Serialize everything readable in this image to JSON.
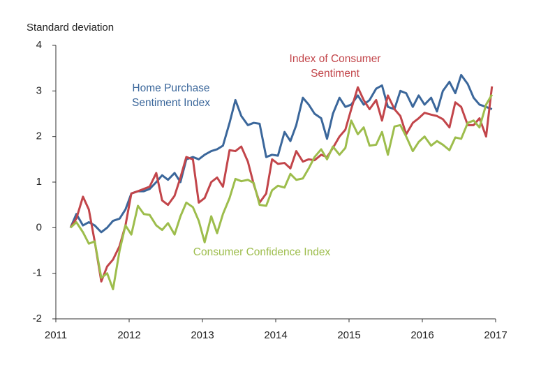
{
  "chart_data": {
    "type": "line",
    "y_axis_label": "Standard deviation",
    "x": [
      2011.2,
      2011.28,
      2011.37,
      2011.45,
      2011.53,
      2011.62,
      2011.7,
      2011.78,
      2011.87,
      2011.95,
      2012.03,
      2012.12,
      2012.2,
      2012.28,
      2012.37,
      2012.45,
      2012.53,
      2012.62,
      2012.7,
      2012.78,
      2012.87,
      2012.95,
      2013.03,
      2013.12,
      2013.2,
      2013.28,
      2013.37,
      2013.45,
      2013.53,
      2013.62,
      2013.7,
      2013.78,
      2013.87,
      2013.95,
      2014.03,
      2014.12,
      2014.2,
      2014.28,
      2014.37,
      2014.45,
      2014.53,
      2014.62,
      2014.7,
      2014.78,
      2014.87,
      2014.95,
      2015.03,
      2015.12,
      2015.2,
      2015.28,
      2015.37,
      2015.45,
      2015.53,
      2015.62,
      2015.7,
      2015.78,
      2015.87,
      2015.95,
      2016.03,
      2016.12,
      2016.2,
      2016.28,
      2016.37,
      2016.45,
      2016.53,
      2016.62,
      2016.7,
      2016.78,
      2016.87,
      2016.95
    ],
    "series": [
      {
        "name": "Home Purchase Sentiment Index",
        "color": "#3b679b",
        "values": [
          0,
          0.3,
          0.05,
          0.12,
          0.05,
          -0.1,
          0,
          0.15,
          0.2,
          0.4,
          0.75,
          0.8,
          0.8,
          0.85,
          1.0,
          1.15,
          1.05,
          1.2,
          1.0,
          1.5,
          1.55,
          1.5,
          1.6,
          1.68,
          1.72,
          1.8,
          2.3,
          2.8,
          2.45,
          2.25,
          2.3,
          2.28,
          1.55,
          1.6,
          1.58,
          2.1,
          1.9,
          2.25,
          2.85,
          2.7,
          2.5,
          2.4,
          1.95,
          2.5,
          2.85,
          2.65,
          2.7,
          2.9,
          2.7,
          2.8,
          3.05,
          3.12,
          2.65,
          2.6,
          3.0,
          2.95,
          2.65,
          2.9,
          2.7,
          2.85,
          2.55,
          3.0,
          3.2,
          2.95,
          3.35,
          3.15,
          2.85,
          2.7,
          2.65,
          2.6
        ]
      },
      {
        "name": "Index of Consumer Sentiment",
        "color": "#c2454a",
        "values": [
          0,
          0.2,
          0.68,
          0.4,
          -0.3,
          -1.18,
          -0.85,
          -0.7,
          -0.4,
          0.05,
          0.75,
          0.8,
          0.85,
          0.9,
          1.2,
          0.6,
          0.5,
          0.7,
          1.1,
          1.55,
          1.5,
          0.55,
          0.65,
          1.0,
          1.1,
          0.9,
          1.7,
          1.68,
          1.78,
          1.45,
          0.95,
          0.55,
          0.75,
          1.5,
          1.4,
          1.42,
          1.3,
          1.68,
          1.45,
          1.5,
          1.48,
          1.6,
          1.55,
          1.75,
          2.0,
          2.15,
          2.6,
          3.08,
          2.8,
          2.6,
          2.8,
          2.35,
          2.9,
          2.6,
          2.45,
          2.05,
          2.3,
          2.4,
          2.52,
          2.48,
          2.45,
          2.38,
          2.2,
          2.75,
          2.65,
          2.25,
          2.25,
          2.4,
          2.0,
          3.1
        ]
      },
      {
        "name": "Consumer Confidence Index",
        "color": "#9dbd4c",
        "values": [
          0,
          0.12,
          -0.1,
          -0.35,
          -0.3,
          -1.1,
          -1.0,
          -1.35,
          -0.5,
          0.05,
          -0.15,
          0.48,
          0.3,
          0.28,
          0.05,
          -0.05,
          0.1,
          -0.15,
          0.25,
          0.55,
          0.45,
          0.15,
          -0.32,
          0.25,
          -0.12,
          0.3,
          0.65,
          1.07,
          1.02,
          1.05,
          0.98,
          0.5,
          0.48,
          0.82,
          0.92,
          0.88,
          1.18,
          1.05,
          1.08,
          1.3,
          1.55,
          1.72,
          1.5,
          1.78,
          1.6,
          1.75,
          2.35,
          2.05,
          2.2,
          1.8,
          1.82,
          2.1,
          1.6,
          2.22,
          2.25,
          2.0,
          1.68,
          1.88,
          2.0,
          1.8,
          1.9,
          1.82,
          1.7,
          1.98,
          1.95,
          2.3,
          2.35,
          2.2,
          2.7,
          2.92
        ]
      }
    ],
    "xlim": [
      2011,
      2017
    ],
    "xticks": [
      2011,
      2012,
      2013,
      2014,
      2015,
      2016,
      2017
    ],
    "ylim": [
      -2,
      4
    ],
    "yticks": [
      -2,
      -1,
      0,
      1,
      2,
      3,
      4
    ],
    "grid": false
  }
}
